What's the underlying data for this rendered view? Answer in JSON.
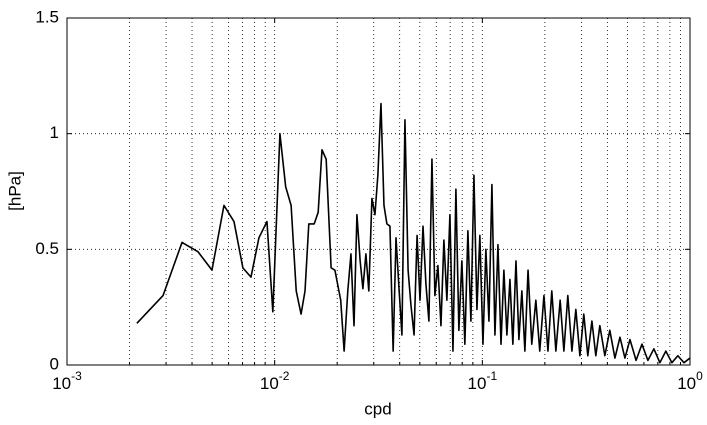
{
  "chart_data": {
    "type": "line",
    "xlabel": "cpd",
    "ylabel": "[hPa]",
    "xscale": "log",
    "grid": true,
    "color": "#000000",
    "xlim": [
      0.001,
      1
    ],
    "ylim": [
      0,
      1.5
    ],
    "xticks": [
      {
        "value": 0.001,
        "label": "10",
        "exponent": "-3"
      },
      {
        "value": 0.01,
        "label": "10",
        "exponent": "-2"
      },
      {
        "value": 0.1,
        "label": "10",
        "exponent": "-1"
      },
      {
        "value": 1,
        "label": "10",
        "exponent": "0"
      }
    ],
    "xminorticks": [
      0.002,
      0.003,
      0.004,
      0.005,
      0.006,
      0.007,
      0.008,
      0.009,
      0.02,
      0.03,
      0.04,
      0.05,
      0.06,
      0.07,
      0.08,
      0.09,
      0.2,
      0.3,
      0.4,
      0.5,
      0.6,
      0.7,
      0.8,
      0.9
    ],
    "yticks": [
      0,
      0.5,
      1,
      1.5
    ],
    "x": [
      0.00217,
      0.0029,
      0.00358,
      0.00427,
      0.00499,
      0.0057,
      0.00637,
      0.00703,
      0.00769,
      0.0084,
      0.00918,
      0.0098,
      0.0106,
      0.0113,
      0.012,
      0.0127,
      0.0134,
      0.014,
      0.0146,
      0.0155,
      0.0162,
      0.0169,
      0.0177,
      0.0187,
      0.0195,
      0.0208,
      0.0216,
      0.0225,
      0.0233,
      0.0241,
      0.0249,
      0.0258,
      0.0266,
      0.0275,
      0.0284,
      0.0294,
      0.0304,
      0.0314,
      0.0325,
      0.0336,
      0.0347,
      0.0359,
      0.0372,
      0.0384,
      0.0397,
      0.041,
      0.0424,
      0.0439,
      0.0453,
      0.0469,
      0.0485,
      0.0501,
      0.0518,
      0.0535,
      0.0553,
      0.0572,
      0.0591,
      0.0611,
      0.0632,
      0.0653,
      0.0675,
      0.0698,
      0.0722,
      0.0746,
      0.0771,
      0.0797,
      0.0824,
      0.0852,
      0.0881,
      0.0911,
      0.0942,
      0.0973,
      0.1007,
      0.104,
      0.1076,
      0.1112,
      0.115,
      0.1189,
      0.123,
      0.127,
      0.1313,
      0.1358,
      0.1403,
      0.1452,
      0.15,
      0.155,
      0.1603,
      0.166,
      0.173,
      0.181,
      0.189,
      0.198,
      0.207,
      0.216,
      0.226,
      0.237,
      0.247,
      0.258,
      0.27,
      0.282,
      0.295,
      0.308,
      0.322,
      0.337,
      0.352,
      0.368,
      0.389,
      0.411,
      0.435,
      0.46,
      0.486,
      0.514,
      0.55,
      0.587,
      0.627,
      0.67,
      0.716,
      0.765,
      0.818,
      0.874,
      0.935,
      1.0
    ],
    "values": [
      0.18,
      0.3,
      0.53,
      0.49,
      0.41,
      0.69,
      0.62,
      0.42,
      0.38,
      0.55,
      0.62,
      0.23,
      1.0,
      0.77,
      0.69,
      0.32,
      0.22,
      0.32,
      0.61,
      0.61,
      0.66,
      0.93,
      0.89,
      0.42,
      0.41,
      0.28,
      0.06,
      0.32,
      0.48,
      0.17,
      0.65,
      0.45,
      0.33,
      0.48,
      0.32,
      0.72,
      0.65,
      0.82,
      1.13,
      0.69,
      0.61,
      0.6,
      0.06,
      0.55,
      0.33,
      0.13,
      1.06,
      0.41,
      0.26,
      0.13,
      0.56,
      0.28,
      0.6,
      0.35,
      0.19,
      0.89,
      0.3,
      0.43,
      0.17,
      0.54,
      0.28,
      0.65,
      0.06,
      0.76,
      0.15,
      0.45,
      0.09,
      0.58,
      0.19,
      0.82,
      0.24,
      0.56,
      0.09,
      0.5,
      0.19,
      0.78,
      0.13,
      0.52,
      0.09,
      0.41,
      0.13,
      0.37,
      0.09,
      0.45,
      0.11,
      0.32,
      0.06,
      0.41,
      0.09,
      0.28,
      0.06,
      0.3,
      0.06,
      0.32,
      0.06,
      0.28,
      0.06,
      0.3,
      0.06,
      0.24,
      0.04,
      0.22,
      0.04,
      0.19,
      0.04,
      0.17,
      0.04,
      0.15,
      0.03,
      0.12,
      0.03,
      0.11,
      0.02,
      0.09,
      0.02,
      0.07,
      0.01,
      0.06,
      0.01,
      0.04,
      0.01,
      0.03
    ]
  }
}
